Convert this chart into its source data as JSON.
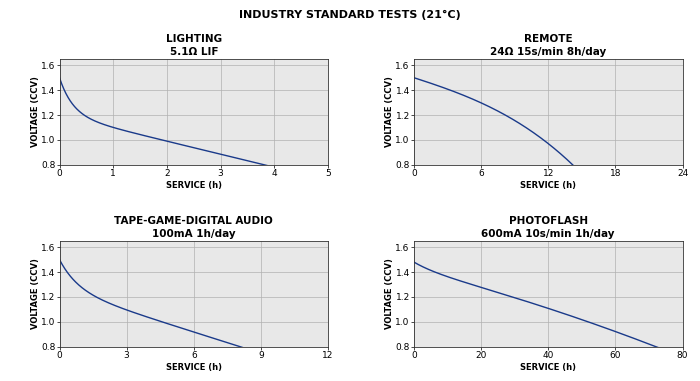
{
  "main_title": "INDUSTRY STANDARD TESTS (21°C)",
  "subplots": [
    {
      "title": "LIGHTING",
      "subtitle": "5.1Ω LIF",
      "xlabel": "SERVICE (h)",
      "ylabel": "VOLTAGE (CCV)",
      "xlim": [
        0,
        5
      ],
      "ylim": [
        0.8,
        1.65
      ],
      "xticks": [
        0,
        1,
        2,
        3,
        4,
        5
      ],
      "yticks": [
        0.8,
        1.0,
        1.2,
        1.4,
        1.6
      ],
      "curve_type": "lighting"
    },
    {
      "title": "REMOTE",
      "subtitle": "24Ω 15s/min 8h/day",
      "xlabel": "SERVICE (h)",
      "ylabel": "VOLTAGE (CCV)",
      "xlim": [
        0,
        24
      ],
      "ylim": [
        0.8,
        1.65
      ],
      "xticks": [
        0,
        6,
        12,
        18,
        24
      ],
      "yticks": [
        0.8,
        1.0,
        1.2,
        1.4,
        1.6
      ],
      "curve_type": "remote"
    },
    {
      "title": "TAPE-GAME-DIGITAL AUDIO",
      "subtitle": "100mA 1h/day",
      "xlabel": "SERVICE (h)",
      "ylabel": "VOLTAGE (CCV)",
      "xlim": [
        0,
        12
      ],
      "ylim": [
        0.8,
        1.65
      ],
      "xticks": [
        0,
        3,
        6,
        9,
        12
      ],
      "yticks": [
        0.8,
        1.0,
        1.2,
        1.4,
        1.6
      ],
      "curve_type": "tape"
    },
    {
      "title": "PHOTOFLASH",
      "subtitle": "600mA 10s/min 1h/day",
      "xlabel": "SERVICE (h)",
      "ylabel": "VOLTAGE (CCV)",
      "xlim": [
        0,
        80
      ],
      "ylim": [
        0.8,
        1.65
      ],
      "xticks": [
        0,
        20,
        40,
        60,
        80
      ],
      "yticks": [
        0.8,
        1.0,
        1.2,
        1.4,
        1.6
      ],
      "curve_type": "photoflash"
    }
  ],
  "line_color": "#1a3a8a",
  "grid_color": "#b0b0b0",
  "bg_color": "#e8e8e8",
  "outer_bg": "#ffffff",
  "title_fontsize": 8,
  "subplot_title_fontsize": 7.5,
  "subtitle_fontsize": 7,
  "axis_label_fontsize": 6,
  "tick_fontsize": 6.5
}
